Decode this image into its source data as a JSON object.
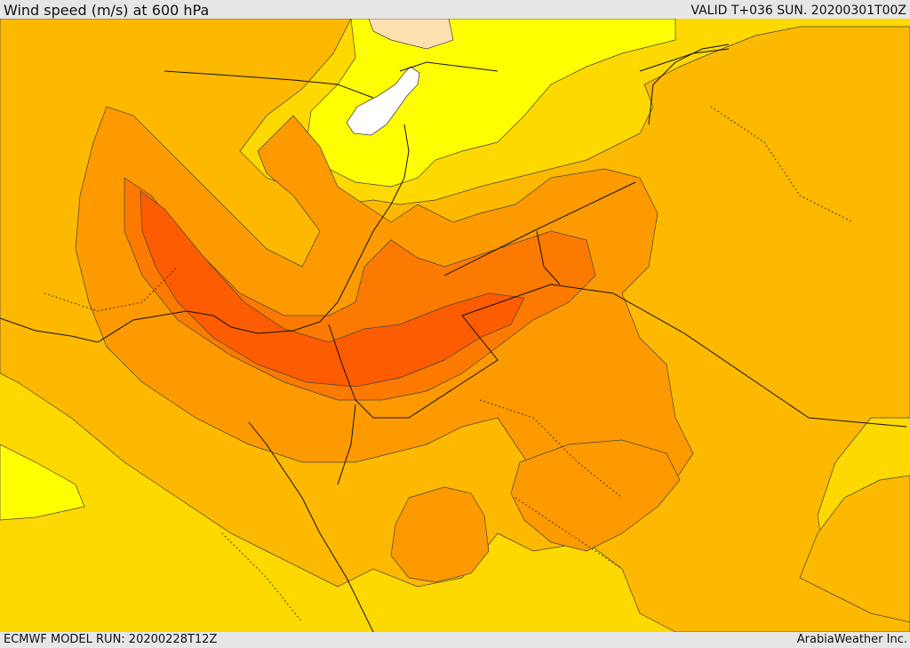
{
  "header": {
    "title": "Wind speed (m/s) at 600 hPa",
    "valid": "VALID T+036 SUN. 20200301T00Z"
  },
  "footer": {
    "model_run": "ECMWF MODEL RUN: 20200228T12Z",
    "credit": "ArabiaWeather Inc."
  },
  "map": {
    "variable": "wind speed",
    "units": "m/s",
    "level": "600 hPa",
    "colors": {
      "calm": "#ffffff",
      "very_light": "#fde0b0",
      "light": "#fffe00",
      "low": "#fed900",
      "moderate": "#fdb900",
      "high": "#fd9a00",
      "very_high": "#fd7a00",
      "max": "#fd5c00"
    }
  }
}
